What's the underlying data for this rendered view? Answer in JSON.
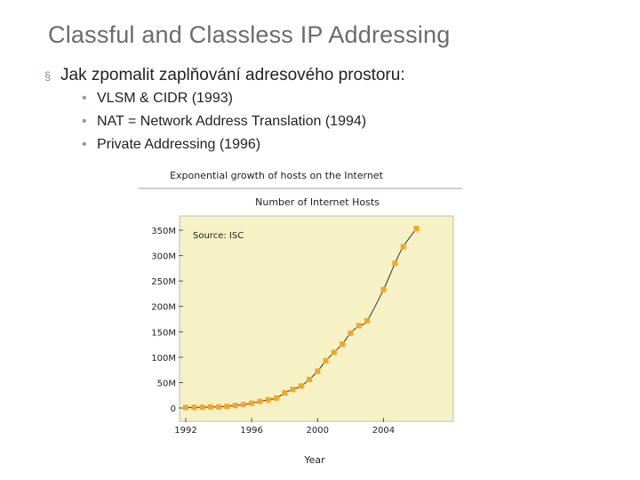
{
  "slide": {
    "title": "Classful and Classless IP Addressing",
    "bullet_marker": "§",
    "bullet": "Jak zpomalit zaplňování adresového prostoru:",
    "sub_marker": "•",
    "sub_bullets": [
      "VLSM & CIDR (1993)",
      "NAT = Network Address Translation (1994)",
      "Private Addressing (1996)"
    ]
  },
  "chart_data": {
    "type": "line",
    "title": "Exponential growth of hosts on the Internet",
    "subtitle": "Number of Internet Hosts",
    "annotation": "Source: ISC",
    "xlabel": "Year",
    "ylabel": "",
    "xticks": [
      1992,
      1996,
      2000,
      2004
    ],
    "yticks": [
      {
        "value": 0,
        "label": "0"
      },
      {
        "value": 50,
        "label": "50M"
      },
      {
        "value": 100,
        "label": "100M"
      },
      {
        "value": 150,
        "label": "150M"
      },
      {
        "value": 200,
        "label": "200M"
      },
      {
        "value": 250,
        "label": "250M"
      },
      {
        "value": 300,
        "label": "300M"
      },
      {
        "value": 350,
        "label": "350M"
      }
    ],
    "xlim": [
      1992,
      2007.7
    ],
    "ylim": [
      0,
      373
    ],
    "grid": false,
    "plot_background": "#f7f1c6",
    "marker_color": "#f5a623",
    "line_color": "#333333",
    "series": [
      {
        "x": [
          1992.0,
          1992.5,
          1993.0,
          1993.5,
          1994.0,
          1994.5,
          1995.0,
          1995.5,
          1996.0,
          1996.5,
          1997.0,
          1997.5,
          1998.0,
          1998.5,
          1999.0,
          1999.5,
          2000.0,
          2000.5,
          2001.0,
          2001.5,
          2002.0,
          2002.5,
          2003.0,
          2004.0,
          2004.7,
          2005.2,
          2006.0
        ],
        "y": [
          1.0,
          1.3,
          1.5,
          2.2,
          2.3,
          3.2,
          4.9,
          6.6,
          9.5,
          12.8,
          16.1,
          19.5,
          29.7,
          36.7,
          43.2,
          56.2,
          72.4,
          93.0,
          109.6,
          125.9,
          147.3,
          162.1,
          171.6,
          233.1,
          285.1,
          317.6,
          353.3
        ]
      }
    ]
  }
}
